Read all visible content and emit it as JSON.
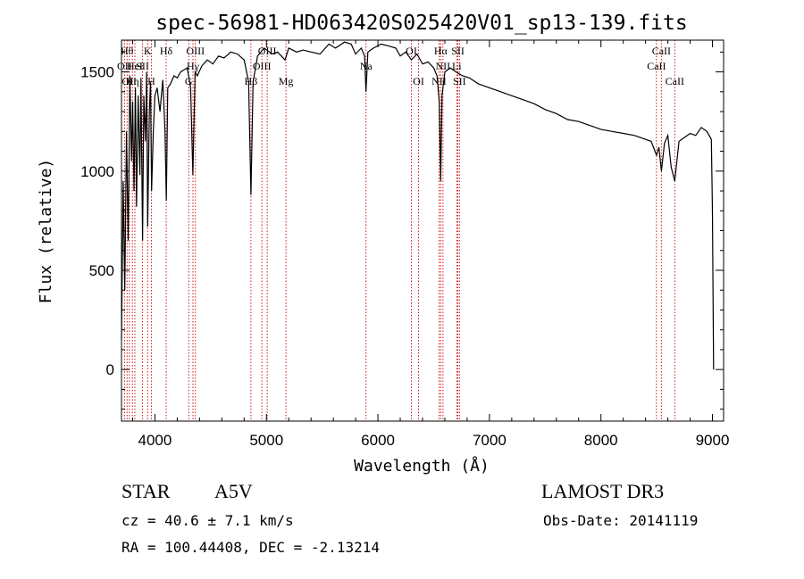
{
  "chart_data": {
    "type": "line",
    "title": "spec-56981-HD063420S025420V01_sp13-139.fits",
    "xlabel": "Wavelength (Å)",
    "ylabel": "Flux (relative)",
    "xlim": [
      3700,
      9100
    ],
    "ylim": [
      -260,
      1660
    ],
    "x_ticks": [
      4000,
      5000,
      6000,
      7000,
      8000,
      9000
    ],
    "x_tick_labels": [
      "4000",
      "5000",
      "6000",
      "7000",
      "8000",
      "9000"
    ],
    "y_ticks": [
      0,
      500,
      1000,
      1500
    ],
    "y_tick_labels": [
      "0",
      "500",
      "1000",
      "1500"
    ],
    "grid": false,
    "series": [
      {
        "name": "spectrum",
        "x": [
          3700,
          3715,
          3730,
          3745,
          3760,
          3775,
          3790,
          3800,
          3812,
          3825,
          3835,
          3850,
          3865,
          3875,
          3889,
          3900,
          3915,
          3925,
          3935,
          3950,
          3960,
          3970,
          3985,
          4000,
          4020,
          4045,
          4070,
          4090,
          4102,
          4115,
          4140,
          4170,
          4200,
          4230,
          4260,
          4290,
          4320,
          4340,
          4360,
          4380,
          4420,
          4470,
          4520,
          4570,
          4620,
          4680,
          4740,
          4800,
          4840,
          4861,
          4880,
          4920,
          4980,
          5050,
          5100,
          5167,
          5200,
          5270,
          5330,
          5400,
          5480,
          5560,
          5620,
          5700,
          5760,
          5800,
          5850,
          5880,
          5893,
          5910,
          5960,
          6030,
          6100,
          6160,
          6200,
          6250,
          6300,
          6350,
          6400,
          6450,
          6500,
          6530,
          6550,
          6563,
          6575,
          6600,
          6650,
          6700,
          6760,
          6820,
          6900,
          7000,
          7100,
          7200,
          7300,
          7400,
          7500,
          7600,
          7700,
          7800,
          7900,
          8000,
          8100,
          8200,
          8300,
          8400,
          8450,
          8498,
          8520,
          8542,
          8570,
          8600,
          8630,
          8662,
          8700,
          8750,
          8800,
          8850,
          8900,
          8950,
          8990,
          9000,
          9010
        ],
        "values": [
          150,
          950,
          400,
          1200,
          650,
          1480,
          1050,
          1350,
          900,
          1420,
          820,
          1380,
          980,
          1470,
          650,
          1380,
          1150,
          1500,
          720,
          1300,
          1450,
          900,
          1200,
          1380,
          1420,
          1300,
          1460,
          1200,
          850,
          1420,
          1440,
          1480,
          1470,
          1500,
          1510,
          1520,
          1420,
          980,
          1500,
          1480,
          1530,
          1560,
          1540,
          1580,
          1570,
          1600,
          1590,
          1560,
          1450,
          880,
          1450,
          1580,
          1620,
          1590,
          1600,
          1560,
          1620,
          1600,
          1610,
          1600,
          1590,
          1640,
          1620,
          1650,
          1640,
          1590,
          1620,
          1580,
          1400,
          1600,
          1620,
          1640,
          1630,
          1620,
          1580,
          1600,
          1560,
          1590,
          1540,
          1550,
          1520,
          1480,
          1350,
          950,
          1380,
          1500,
          1520,
          1500,
          1480,
          1470,
          1440,
          1420,
          1400,
          1380,
          1360,
          1340,
          1310,
          1290,
          1260,
          1250,
          1230,
          1210,
          1200,
          1190,
          1180,
          1160,
          1150,
          1080,
          1120,
          1000,
          1140,
          1180,
          1020,
          950,
          1150,
          1170,
          1190,
          1180,
          1220,
          1200,
          1160,
          800,
          0
        ]
      }
    ],
    "lines": [
      {
        "wavelength": 3750,
        "label": "Hθ",
        "row": 0
      },
      {
        "wavelength": 3727,
        "label": "OII",
        "row": 1
      },
      {
        "wavelength": 3770,
        "label": "OII",
        "row": 2
      },
      {
        "wavelength": 3798,
        "label": "Hη",
        "row": 2
      },
      {
        "wavelength": 3820,
        "label": "HeI",
        "row": 1
      },
      {
        "wavelength": 3889,
        "label": "SII",
        "row": 1
      },
      {
        "wavelength": 3934,
        "label": "K",
        "row": 0
      },
      {
        "wavelength": 3968,
        "label": "H",
        "row": 2
      },
      {
        "wavelength": 4101,
        "label": "Hδ",
        "row": 0
      },
      {
        "wavelength": 4303,
        "label": "G",
        "row": 2
      },
      {
        "wavelength": 4341,
        "label": "Hγ",
        "row": 1
      },
      {
        "wavelength": 4363,
        "label": "OIII",
        "row": 0
      },
      {
        "wavelength": 4861,
        "label": "Hβ",
        "row": 2
      },
      {
        "wavelength": 4959,
        "label": "OIII",
        "row": 1
      },
      {
        "wavelength": 5007,
        "label": "OIII",
        "row": 0
      },
      {
        "wavelength": 5175,
        "label": "Mg",
        "row": 2
      },
      {
        "wavelength": 5893,
        "label": "Na",
        "row": 1
      },
      {
        "wavelength": 6300,
        "label": "OI",
        "row": 0
      },
      {
        "wavelength": 6364,
        "label": "OI",
        "row": 2
      },
      {
        "wavelength": 6548,
        "label": "NII",
        "row": 2
      },
      {
        "wavelength": 6563,
        "label": "Hα",
        "row": 0
      },
      {
        "wavelength": 6583,
        "label": "NII",
        "row": 1
      },
      {
        "wavelength": 6707,
        "label": "Li",
        "row": 1
      },
      {
        "wavelength": 6717,
        "label": "SII",
        "row": 0
      },
      {
        "wavelength": 6731,
        "label": "SII",
        "row": 2
      },
      {
        "wavelength": 8498,
        "label": "CaII",
        "row": 1
      },
      {
        "wavelength": 8542,
        "label": "CaII",
        "row": 0
      },
      {
        "wavelength": 8662,
        "label": "CaII",
        "row": 2
      }
    ]
  },
  "info": {
    "object_type": "STAR",
    "subclass": "A5V",
    "survey": "LAMOST DR3",
    "redshift_line": "cz = 40.6 ± 7.1 km/s",
    "obs_date_line": "Obs-Date: 20141119",
    "coords_line": "RA = 100.44408, DEC =  -2.13214"
  },
  "colors": {
    "spectrum": "#000000",
    "line_marker": "#cc0000",
    "axis": "#000000"
  }
}
